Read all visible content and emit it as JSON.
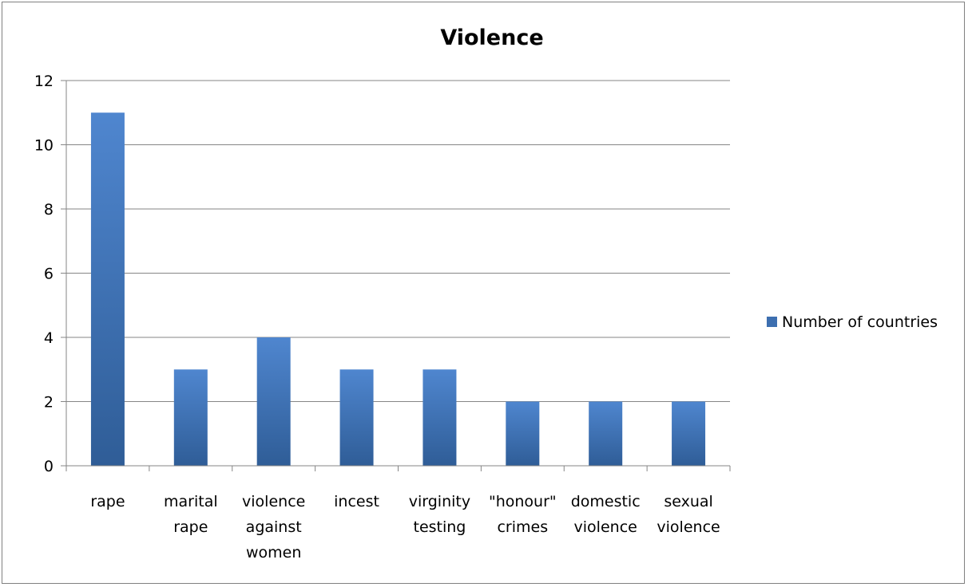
{
  "chart_data": {
    "type": "bar",
    "title": "Violence",
    "xlabel": "",
    "ylabel": "",
    "categories": [
      [
        "rape"
      ],
      [
        "marital",
        "rape"
      ],
      [
        "violence",
        "against",
        "women"
      ],
      [
        "incest"
      ],
      [
        "virginity",
        "testing"
      ],
      [
        "\"honour\"",
        "crimes"
      ],
      [
        "domestic",
        "violence"
      ],
      [
        "sexual",
        "violence"
      ]
    ],
    "series": [
      {
        "name": "Number of countries",
        "values": [
          11,
          3,
          4,
          3,
          3,
          2,
          2,
          2
        ],
        "color": "#4a7ebb"
      }
    ],
    "ylim": [
      0,
      12
    ],
    "yticks": [
      "0",
      "2",
      "4",
      "6",
      "8",
      "10",
      "12"
    ],
    "grid": true,
    "legend_position": "right"
  }
}
